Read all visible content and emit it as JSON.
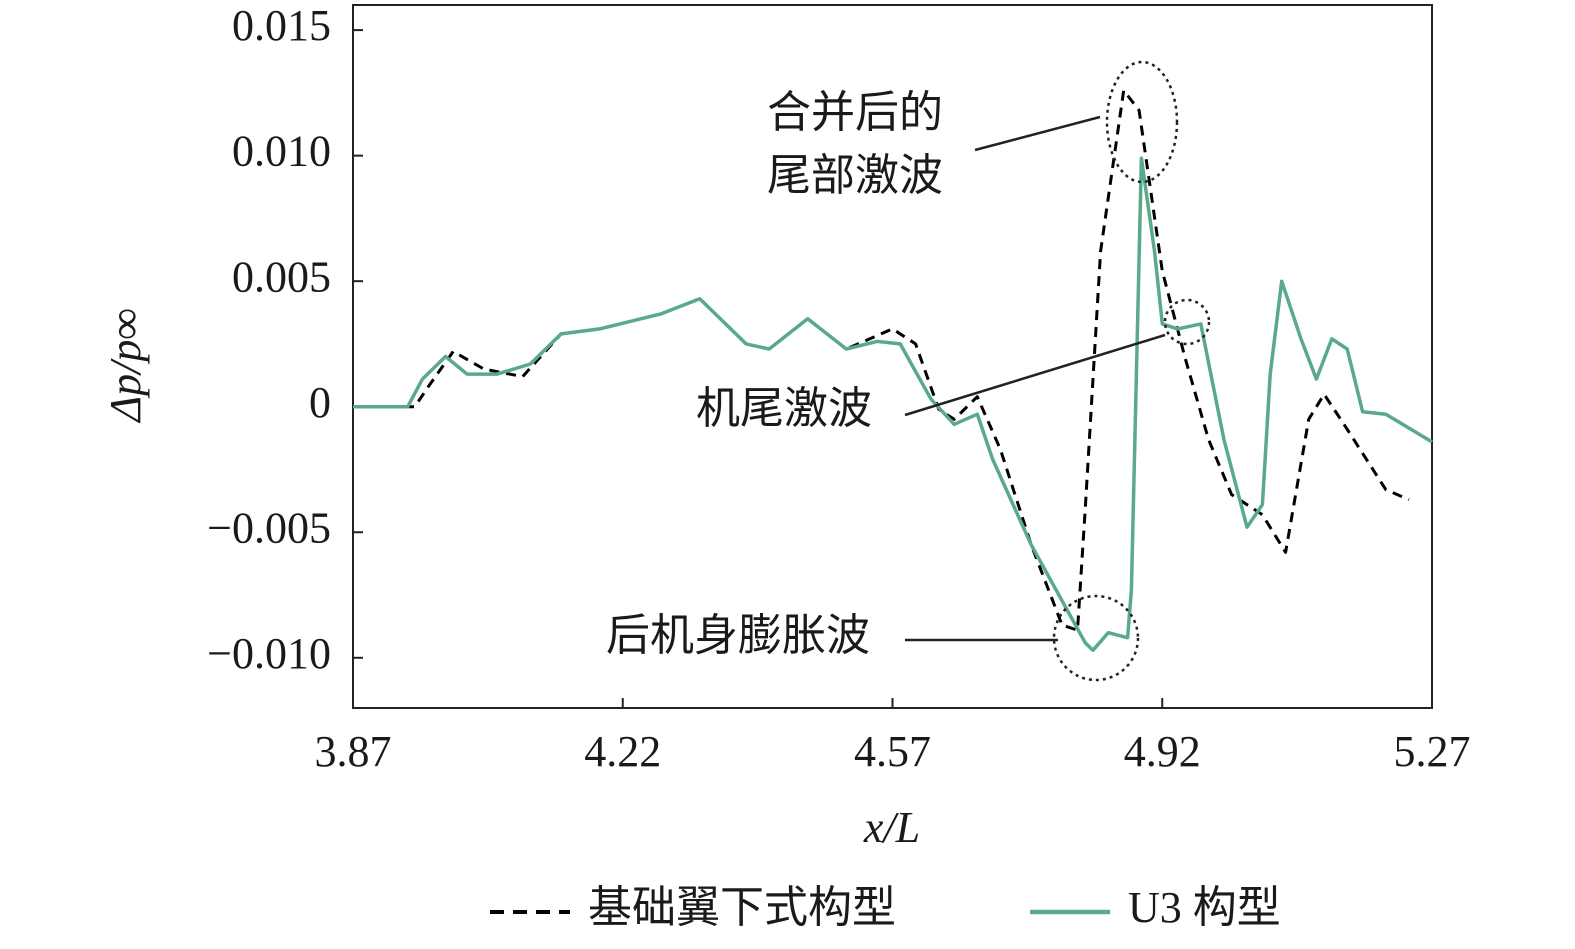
{
  "chart_data": {
    "type": "line",
    "ylabel": "Δp/p∞",
    "xlabel": "x/L",
    "xlim": [
      3.87,
      5.27
    ],
    "xticks": [
      3.87,
      4.22,
      4.57,
      4.92,
      5.27
    ],
    "ylim": [
      -0.012,
      0.016
    ],
    "yticks": [
      0.015,
      {
        "value": 0.01,
        "label": "0.010"
      },
      0.005,
      0,
      {
        "value": -0.005,
        "label": "−0.005"
      },
      {
        "value": -0.01,
        "label": "−0.010"
      }
    ],
    "series": [
      {
        "name": "基础翼下式构型",
        "color": "#000000",
        "dash": true,
        "x": [
          3.87,
          3.95,
          3.97,
          4.0,
          4.04,
          4.09,
          4.14,
          4.19,
          4.27,
          4.32,
          4.38,
          4.41,
          4.46,
          4.51,
          4.57,
          4.6,
          4.63,
          4.65,
          4.68,
          4.71,
          4.75,
          4.79,
          4.81,
          4.82,
          4.84,
          4.87,
          4.89,
          4.92,
          4.95,
          4.98,
          5.01,
          5.05,
          5.08,
          5.11,
          5.13,
          5.16,
          5.21,
          5.24
        ],
        "values": [
          0,
          0,
          0.0009,
          0.0022,
          0.0015,
          0.0012,
          0.0029,
          0.0031,
          0.0037,
          0.0043,
          0.0025,
          0.0023,
          0.0035,
          0.0023,
          0.0031,
          0.0025,
          -0.0001,
          -0.0005,
          0.0004,
          -0.0017,
          -0.0055,
          -0.0087,
          -0.0089,
          -0.0041,
          0.0062,
          0.0126,
          0.0118,
          0.0054,
          0.0019,
          -0.0013,
          -0.0035,
          -0.0043,
          -0.0058,
          -0.0005,
          0.0005,
          -0.0009,
          -0.0033,
          -0.0037
        ]
      },
      {
        "name": "U3 构型",
        "color": "#5aaa8a",
        "dash": false,
        "x": [
          3.87,
          3.941,
          3.96,
          3.99,
          4.018,
          4.057,
          4.1,
          4.14,
          4.19,
          4.27,
          4.32,
          4.38,
          4.41,
          4.46,
          4.51,
          4.55,
          4.58,
          4.62,
          4.65,
          4.68,
          4.7,
          4.75,
          4.82,
          4.83,
          4.85,
          4.875,
          4.88,
          4.893,
          4.91,
          4.92,
          4.94,
          4.97,
          5.0,
          5.03,
          5.05,
          5.06,
          5.075,
          5.1,
          5.12,
          5.14,
          5.16,
          5.18,
          5.21,
          5.27
        ],
        "values": [
          0,
          0,
          0.0011,
          0.002,
          0.0013,
          0.0013,
          0.0017,
          0.0029,
          0.0031,
          0.0037,
          0.0043,
          0.0025,
          0.0023,
          0.0035,
          0.0023,
          0.0026,
          0.0025,
          0.0003,
          -0.0007,
          -0.0003,
          -0.0021,
          -0.0055,
          -0.0094,
          -0.0097,
          -0.009,
          -0.0092,
          -0.0073,
          0.0099,
          0.0062,
          0.0033,
          0.0031,
          0.0033,
          -0.0013,
          -0.0048,
          -0.0039,
          0.0013,
          0.005,
          0.0027,
          0.0011,
          0.0027,
          0.0023,
          -0.0002,
          -0.0003,
          -0.0014
        ]
      }
    ],
    "annotations": [
      {
        "lines": [
          "合并后的",
          "尾部激波"
        ]
      },
      {
        "lines": [
          "机尾激波"
        ]
      },
      {
        "lines": [
          "后机身膨胀波"
        ]
      }
    ]
  }
}
